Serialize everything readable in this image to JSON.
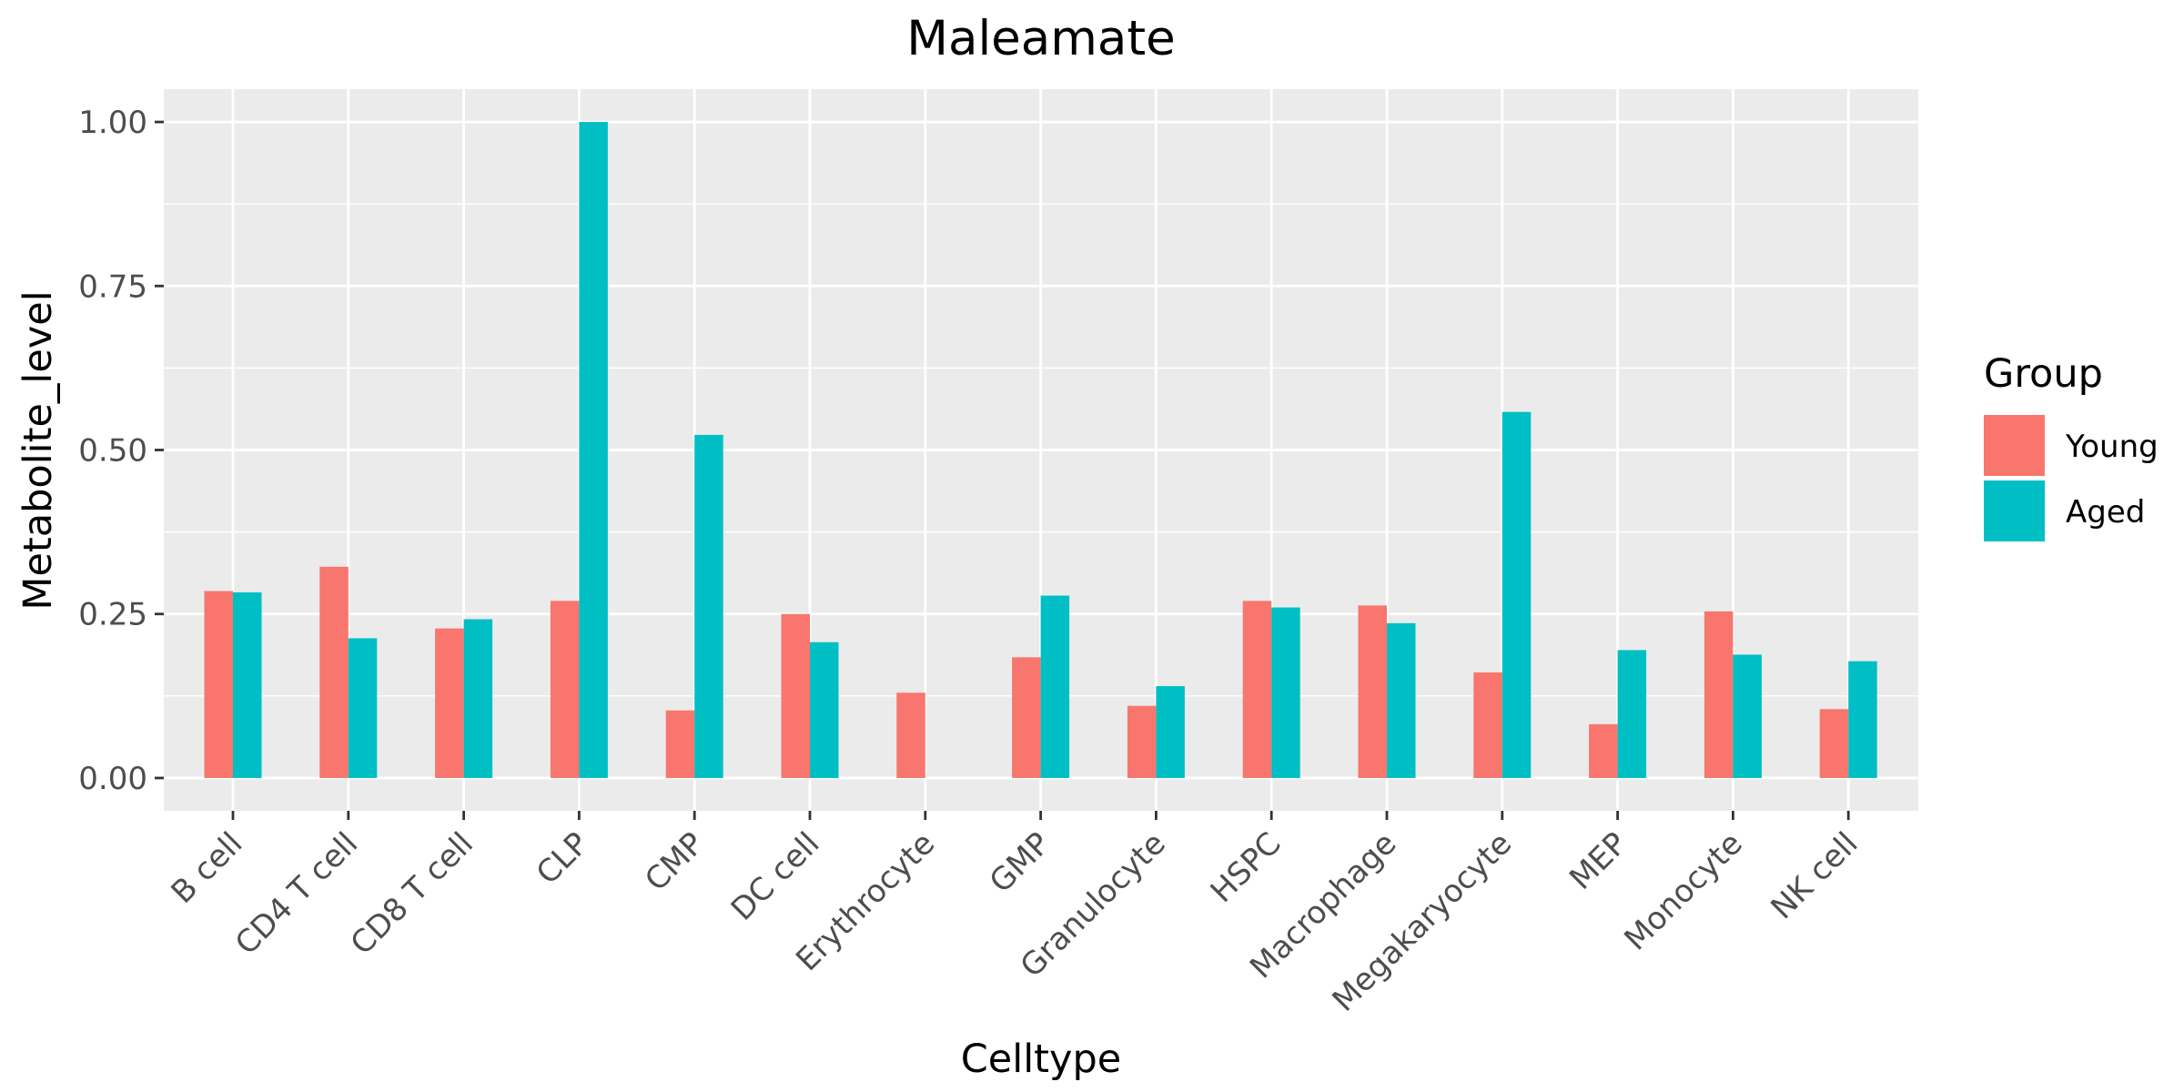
{
  "chart_data": {
    "type": "bar",
    "title": "Maleamate",
    "xlabel": "Celltype",
    "ylabel": "Metabolite_level",
    "ylim": [
      -0.05,
      1.05
    ],
    "yticks": [
      "0.00",
      "0.25",
      "0.50",
      "0.75",
      "1.00"
    ],
    "ytick_values": [
      0,
      0.25,
      0.5,
      0.75,
      1.0
    ],
    "grid": true,
    "legend": {
      "title": "Group",
      "position": "right"
    },
    "categories": [
      "B cell",
      "CD4 T cell",
      "CD8 T cell",
      "CLP",
      "CMP",
      "DC cell",
      "Erythrocyte",
      "GMP",
      "Granulocyte",
      "HSPC",
      "Macrophage",
      "Megakaryocyte",
      "MEP",
      "Monocyte",
      "NK cell"
    ],
    "series": [
      {
        "name": "Young",
        "color": "#F8766D",
        "values": [
          0.285,
          0.322,
          0.228,
          0.27,
          0.103,
          0.25,
          0.13,
          0.184,
          0.11,
          0.27,
          0.263,
          0.161,
          0.082,
          0.254,
          0.105
        ]
      },
      {
        "name": "Aged",
        "color": "#00BFC4",
        "values": [
          0.283,
          0.213,
          0.242,
          1.0,
          0.523,
          0.207,
          null,
          0.278,
          0.14,
          0.26,
          0.236,
          0.558,
          0.195,
          0.188,
          0.178
        ]
      }
    ]
  }
}
